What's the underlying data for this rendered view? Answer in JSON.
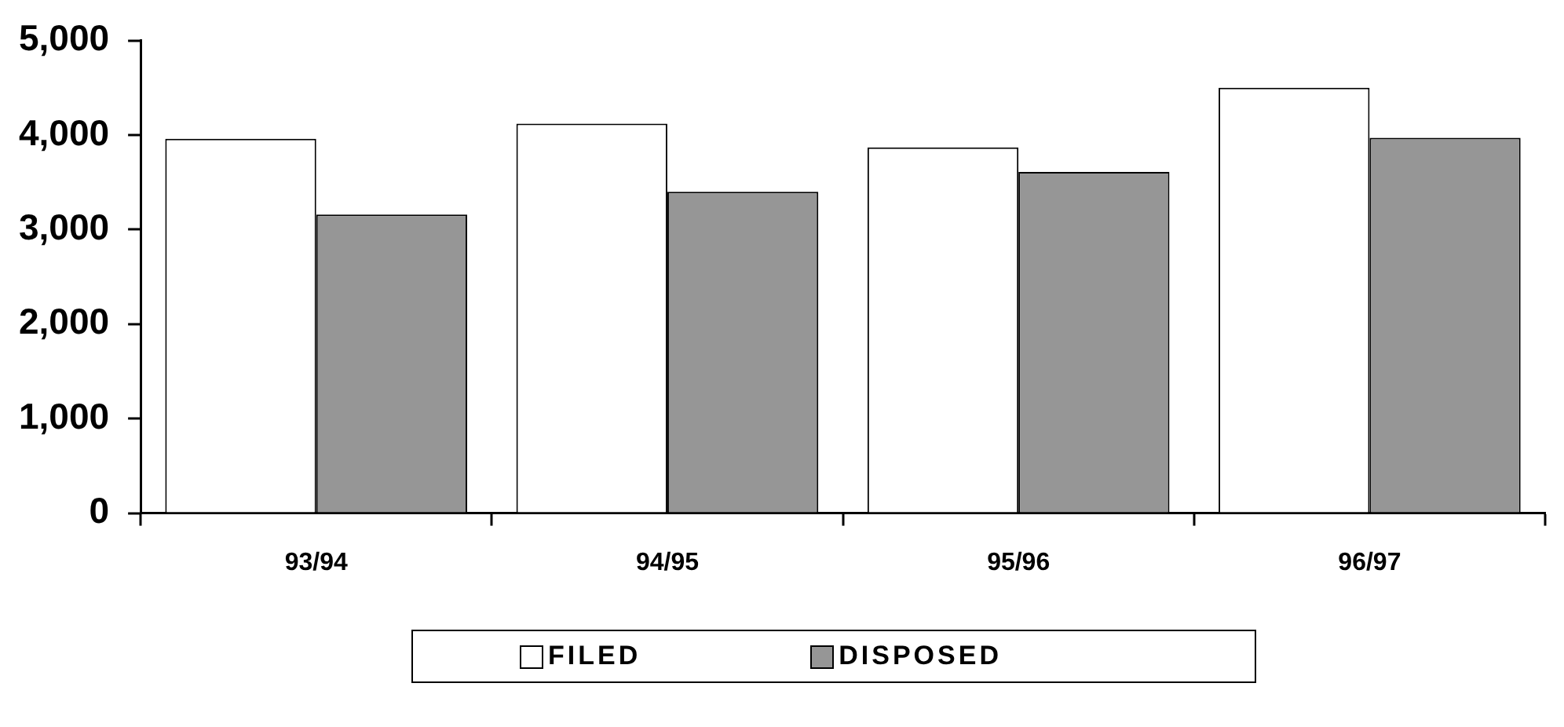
{
  "chart_data": {
    "type": "bar",
    "categories": [
      "93/94",
      "94/95",
      "95/96",
      "96/97"
    ],
    "series": [
      {
        "name": "FILED",
        "color": "#ffffff",
        "values": [
          3960,
          4120,
          3870,
          4500
        ]
      },
      {
        "name": "DISPOSED",
        "color": "#969696",
        "values": [
          3160,
          3400,
          3610,
          3970
        ]
      }
    ],
    "ylim": [
      0,
      5000
    ],
    "yticks": [
      {
        "value": 0,
        "label": "0"
      },
      {
        "value": 1000,
        "label": "1,000"
      },
      {
        "value": 2000,
        "label": "2,000"
      },
      {
        "value": 3000,
        "label": "3,000"
      },
      {
        "value": 4000,
        "label": "4,000"
      },
      {
        "value": 5000,
        "label": "5,000"
      }
    ],
    "grid": false,
    "legend": "bottom"
  }
}
